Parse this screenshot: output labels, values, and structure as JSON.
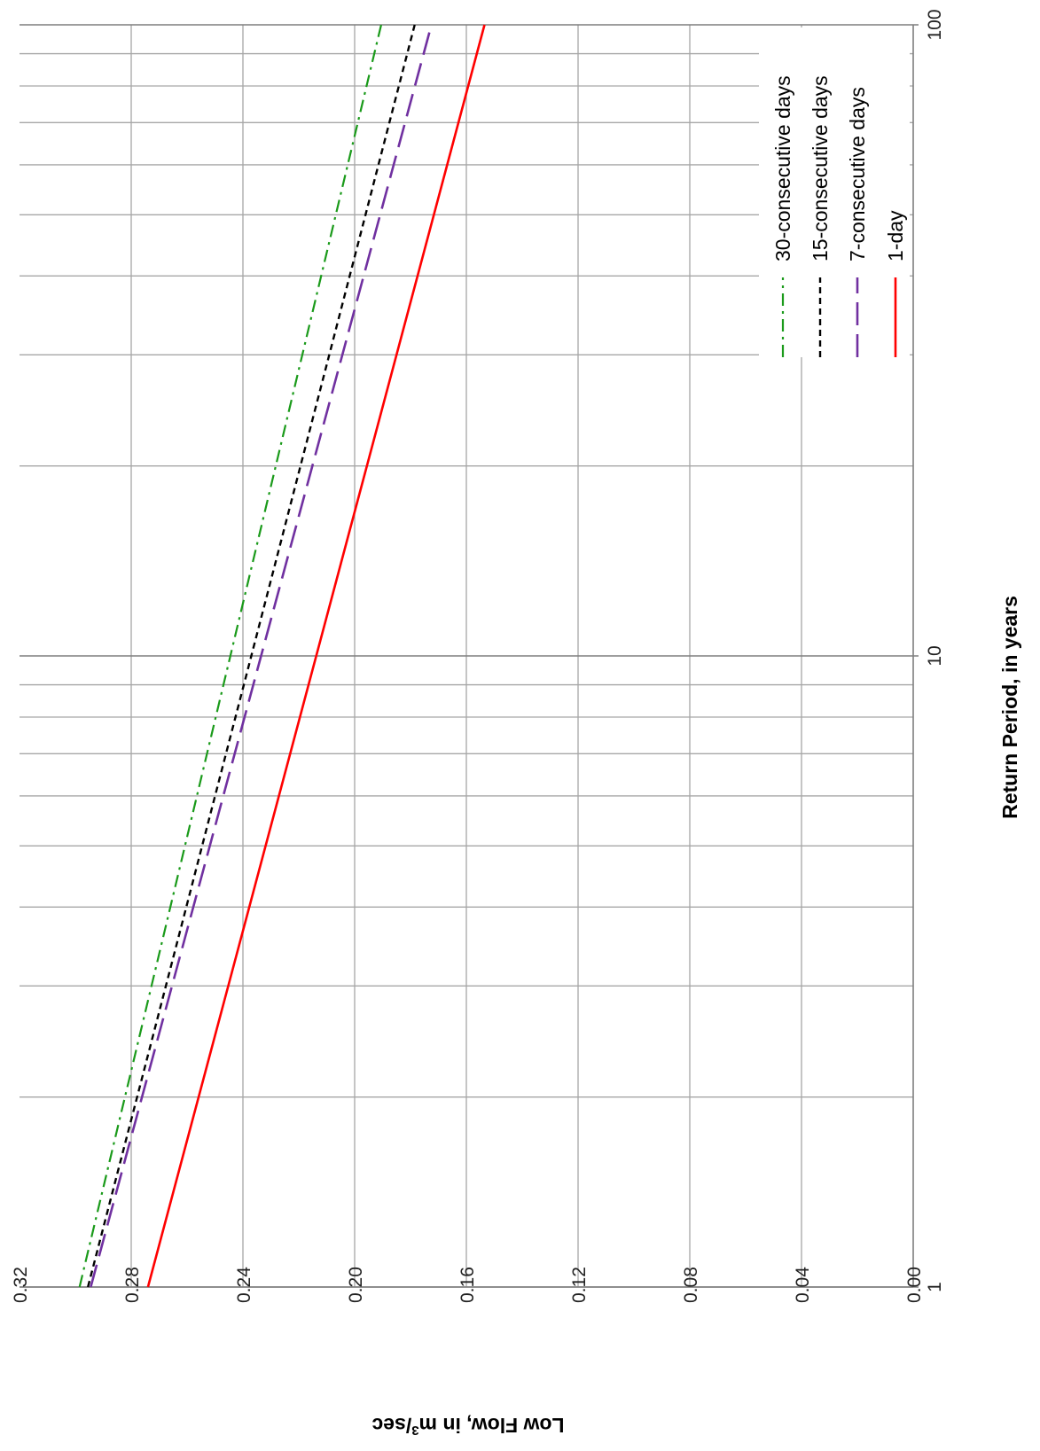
{
  "chart_data": {
    "type": "line",
    "orientation": "rotated 90 degrees clockwise",
    "x_scale": "log",
    "xlabel": "Return Period, in years",
    "ylabel_prefix": "Low Flow, in m",
    "ylabel_sup": "3",
    "ylabel_suffix": "/sec",
    "xlim": [
      1,
      100
    ],
    "ylim": [
      0,
      0.32
    ],
    "x_ticks": [
      "1",
      "10",
      "100"
    ],
    "y_ticks": [
      "0.00",
      "0.04",
      "0.08",
      "0.12",
      "0.16",
      "0.20",
      "0.24",
      "0.28",
      "0.32"
    ],
    "grid": true,
    "legend_position": "top-right",
    "series": [
      {
        "name": "30-consecutive days",
        "color": "#1a9a1a",
        "dash": "dashdot",
        "x": [
          1,
          100
        ],
        "y": [
          0.2985,
          0.1905
        ]
      },
      {
        "name": "15-consecutive days",
        "color": "#000000",
        "dash": "short-dash",
        "x": [
          1,
          100
        ],
        "y": [
          0.2955,
          0.1785
        ]
      },
      {
        "name": "7-consecutive days",
        "color": "#7030a0",
        "dash": "long-dash",
        "x": [
          1,
          100
        ],
        "y": [
          0.2945,
          0.1725
        ]
      },
      {
        "name": "1-day",
        "color": "#ff0000",
        "dash": "solid",
        "x": [
          1,
          100
        ],
        "y": [
          0.274,
          0.1535
        ]
      }
    ]
  }
}
